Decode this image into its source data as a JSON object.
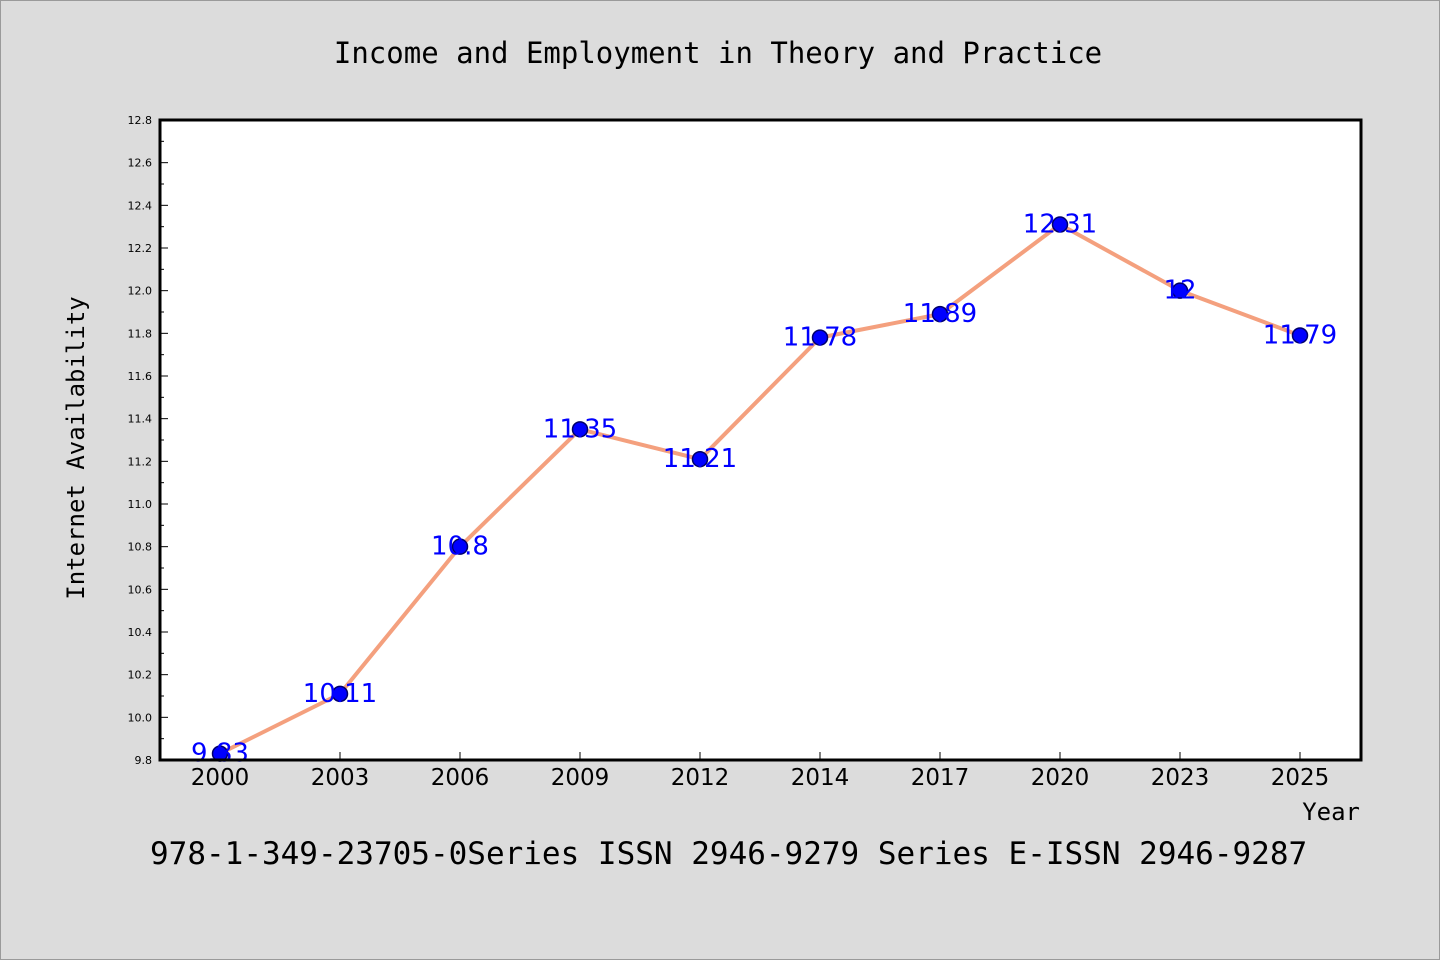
{
  "chart_data": {
    "type": "line",
    "title": "Income and Employment in Theory and Practice",
    "xlabel": "Year",
    "ylabel": "Internet Availability",
    "categories": [
      "2000",
      "2003",
      "2006",
      "2009",
      "2012",
      "2014",
      "2017",
      "2020",
      "2023",
      "2025"
    ],
    "series": [
      {
        "values": [
          9.83,
          10.11,
          10.8,
          11.35,
          11.21,
          11.78,
          11.89,
          12.31,
          12,
          11.79
        ],
        "data_labels": [
          "9.83",
          "10.11",
          "10.8",
          "11.35",
          "11.21",
          "11.78",
          "11.89",
          "12.31",
          "12",
          "11.79"
        ]
      }
    ],
    "ylim": [
      9.8,
      12.8
    ],
    "yticks": [
      "9.8",
      "10.0",
      "10.2",
      "10.4",
      "10.6",
      "10.8",
      "11.0",
      "11.2",
      "11.4",
      "11.6",
      "11.8",
      "12.0",
      "12.2",
      "12.4",
      "12.6",
      "12.8"
    ],
    "grid": false,
    "line_color": "#f4a07e",
    "marker_color": "#0000ff",
    "label_color": "#0000ff",
    "plot_background": "#ffffff",
    "page_background": "#dcdcdc"
  },
  "footer": {
    "text": "978-1-349-23705-0Series ISSN 2946-9279 Series E-ISSN 2946-9287"
  }
}
